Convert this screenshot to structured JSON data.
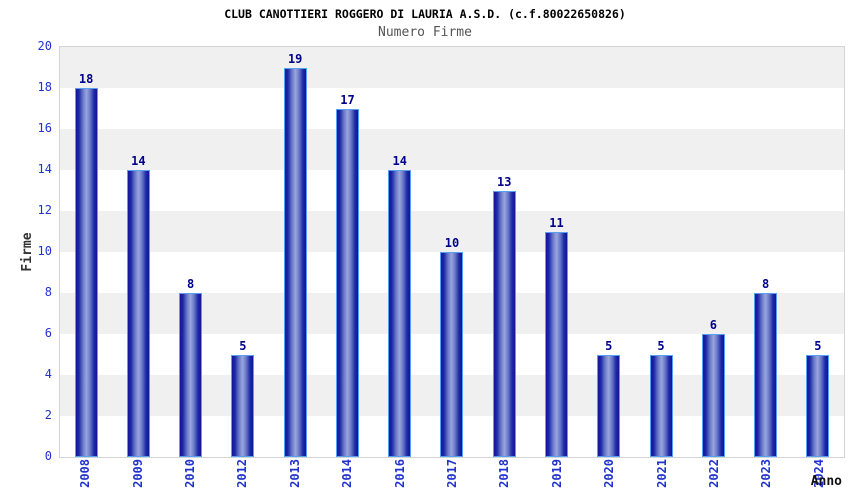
{
  "chart_data": {
    "type": "bar",
    "title": "CLUB CANOTTIERI ROGGERO DI LAURIA A.S.D. (c.f.80022650826)",
    "subtitle": "Numero Firme",
    "xlabel": "Anno",
    "ylabel": "Firme",
    "categories": [
      "2008",
      "2009",
      "2010",
      "2012",
      "2013",
      "2014",
      "2016",
      "2017",
      "2018",
      "2019",
      "2020",
      "2021",
      "2022",
      "2023",
      "2024"
    ],
    "values": [
      18,
      14,
      8,
      5,
      19,
      17,
      14,
      10,
      13,
      11,
      5,
      5,
      6,
      8,
      5
    ],
    "ylim": [
      0,
      20
    ],
    "y_ticks": [
      0,
      2,
      4,
      6,
      8,
      10,
      12,
      14,
      16,
      18,
      20
    ],
    "legend": null,
    "grid": "alternating horizontal bands every 2 units, gray band at top",
    "colors": {
      "bar_dark": "#14149a",
      "bar_light": "#9aa6de",
      "bar_border": "#55a0f0",
      "axis_tick_label": "#2233cc",
      "value_label": "#00008b",
      "band_gray": "#f0f0f0",
      "band_white": "#ffffff",
      "plot_border": "#d4d4d4",
      "title_color": "#000000",
      "subtitle_color": "#555555"
    }
  }
}
